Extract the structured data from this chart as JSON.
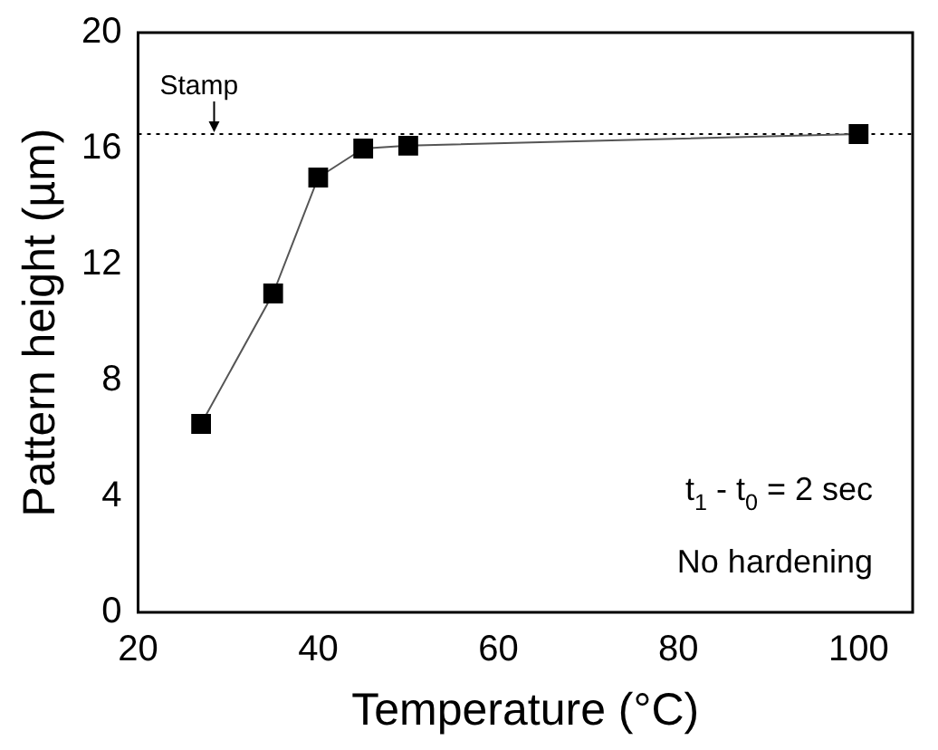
{
  "chart_data": {
    "type": "line",
    "xlabel": "Temperature (°C)",
    "ylabel": "Pattern height (µm)",
    "x": [
      27,
      35,
      40,
      45,
      50,
      100
    ],
    "series": [
      {
        "color": "#000000",
        "values": [
          6.5,
          11,
          15,
          16,
          16.1,
          16.5
        ]
      }
    ],
    "xlim": [
      20,
      106
    ],
    "xticks": [
      20,
      40,
      60,
      80,
      100
    ],
    "ylim": [
      0,
      20
    ],
    "yticks": [
      0,
      4,
      8,
      12,
      16,
      20
    ],
    "marker": "square",
    "line_style": "solid",
    "grid": false,
    "legend": false,
    "ref_lines": [
      {
        "axis": "y",
        "value": 16.5,
        "label": "Stamp",
        "line_style": "dotted",
        "color": "#000000"
      }
    ],
    "annotations": [
      "t$_{1}$ - t$_{0}$ = 2 sec",
      "No hardening"
    ]
  }
}
